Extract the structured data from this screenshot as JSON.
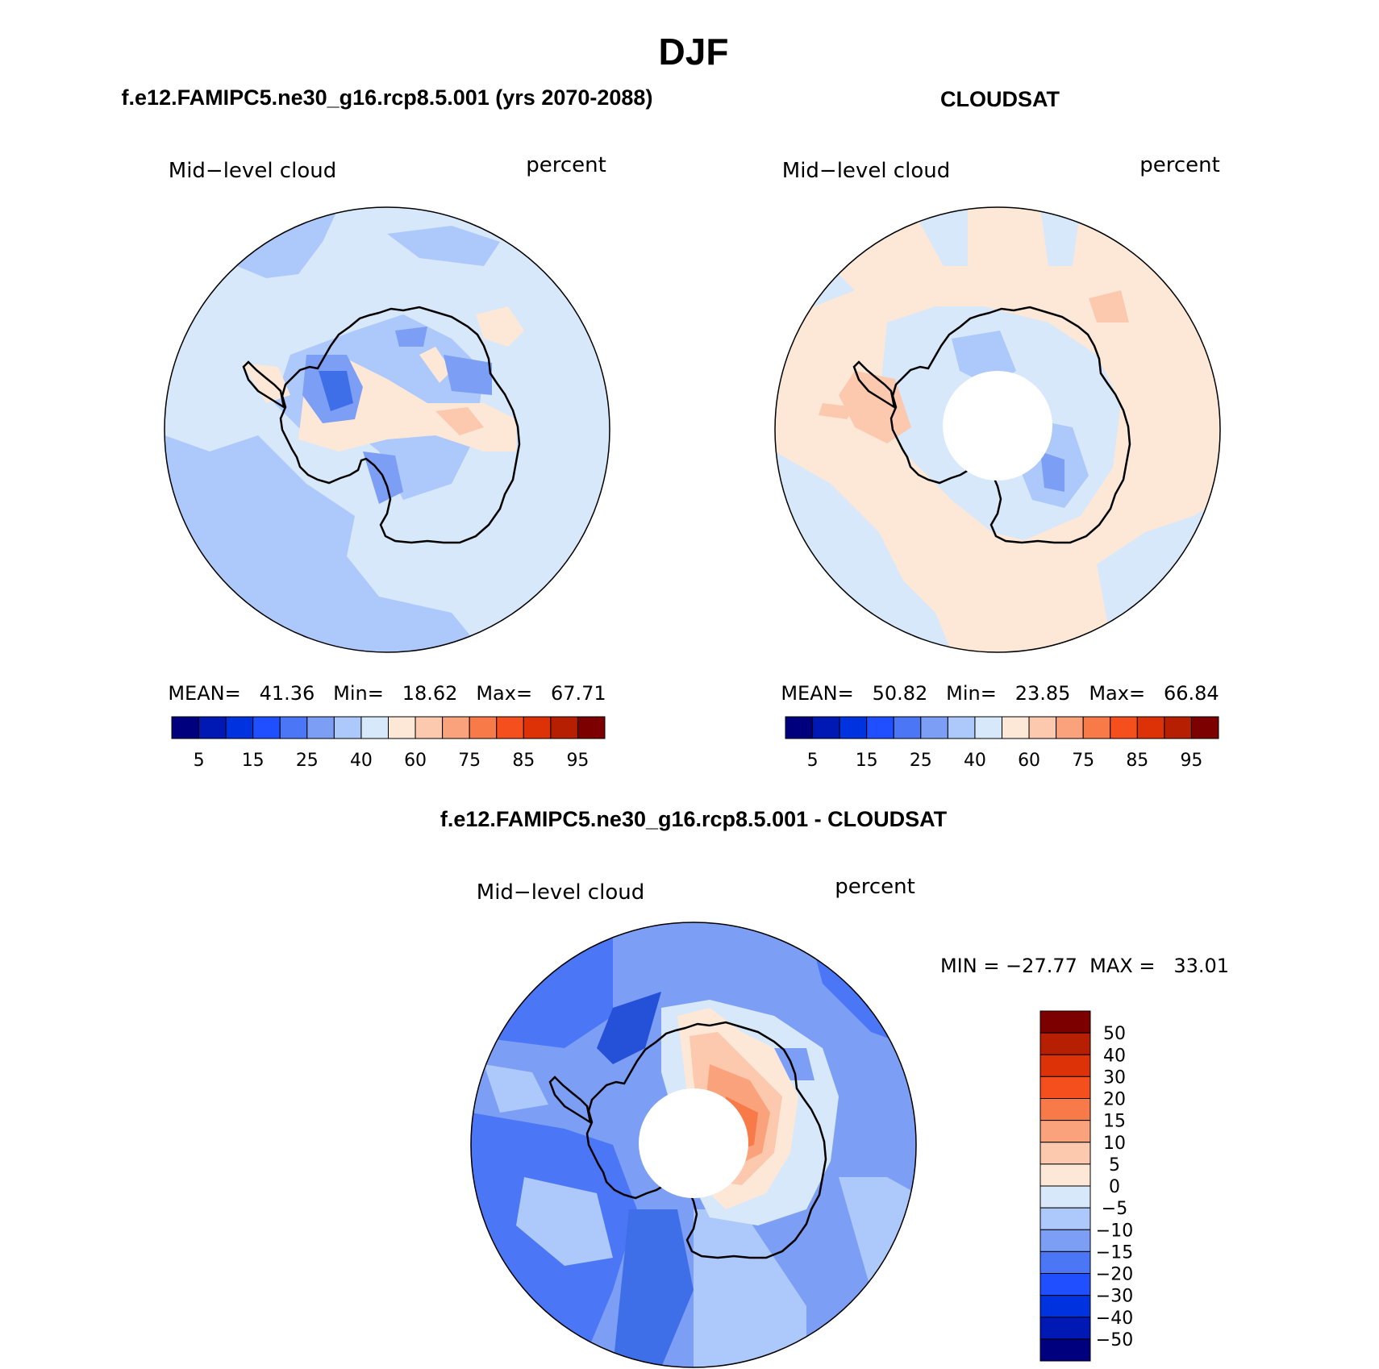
{
  "page": {
    "main_title": "DJF",
    "model_title": "f.e12.FAMIPC5.ne30_g16.rcp8.5.001 (yrs 2070-2088)",
    "obs_title": "CLOUDSAT",
    "diff_title": "f.e12.FAMIPC5.ne30_g16.rcp8.5.001 - CLOUDSAT"
  },
  "panels": [
    {
      "id": "model",
      "variable": "Mid−level cloud",
      "units": "percent",
      "stats_text": "MEAN=   41.36   Min=   18.62   Max=   67.71",
      "mean": 41.36,
      "min": 18.62,
      "max": 67.71,
      "pole_hole": false
    },
    {
      "id": "obs",
      "variable": "Mid−level cloud",
      "units": "percent",
      "stats_text": "MEAN=   50.82   Min=   23.85   Max=   66.84",
      "mean": 50.82,
      "min": 23.85,
      "max": 66.84,
      "pole_hole": true
    },
    {
      "id": "diff",
      "variable": "Mid−level cloud",
      "units": "percent",
      "stats_text": "MIN = −27.77  MAX =   33.01",
      "min": -27.77,
      "max": 33.01,
      "pole_hole": true
    }
  ],
  "colorbars": {
    "absolute": {
      "colors": [
        "#00007f",
        "#0019b5",
        "#0033e0",
        "#1f4fff",
        "#4b76f5",
        "#7c9ff5",
        "#adc8fa",
        "#d6e8fa",
        "#fde8d8",
        "#fcc8ae",
        "#f9a27b",
        "#f77a48",
        "#f54f1e",
        "#dd3108",
        "#b61f02",
        "#7d0000"
      ],
      "labels": [
        "5",
        "15",
        "25",
        "40",
        "60",
        "75",
        "85",
        "95"
      ]
    },
    "difference": {
      "colors_top_to_bottom": [
        "#7d0000",
        "#b61f02",
        "#dd3108",
        "#f54f1e",
        "#f77a48",
        "#f9a27b",
        "#fcc8ae",
        "#fde8d8",
        "#d6e8fa",
        "#adc8fa",
        "#7c9ff5",
        "#4b76f5",
        "#1f4fff",
        "#0033e0",
        "#0019b5",
        "#00007f"
      ],
      "labels_top_to_bottom": [
        "50",
        "40",
        "30",
        "20",
        "15",
        "10",
        "5",
        "0",
        "−5",
        "−10",
        "−15",
        "−20",
        "−30",
        "−40",
        "−50"
      ]
    }
  },
  "field_colors": {
    "deep_blue": "#3f6fe8",
    "mid_blue": "#7c9ff5",
    "light_blue": "#adc8fa",
    "pale_blue": "#d6e8fa",
    "pale_orange": "#fde8d8",
    "light_orange": "#fcc8ae",
    "orange": "#f9a27b",
    "red_orange": "#f77a48",
    "dark_blue": "#2550d8"
  }
}
